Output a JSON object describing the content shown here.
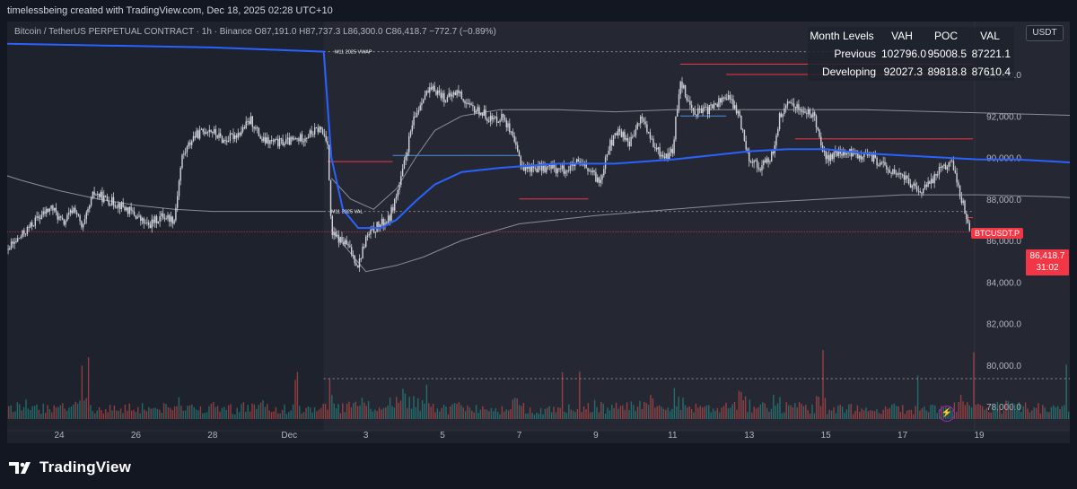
{
  "caption": "timelessbeing created with TradingView.com, Dec 18, 2025 02:28 UTC+10",
  "chart_title": "Bitcoin / TetherUS PERPETUAL CONTRACT · 1h · Binance  O87,191.0  H87,737.3  L86,300.0  C86,418.7  −772.7 (−0.89%)",
  "currency_label": "USDT",
  "brand_name": "TradingView",
  "month_levels": {
    "headers": [
      "Month Levels",
      "VAH",
      "POC",
      "VAL"
    ],
    "rows": [
      {
        "label": "Previous",
        "vah": "102796.0",
        "poc": "95008.5",
        "val": "87221.1"
      },
      {
        "label": "Developing",
        "vah": "92027.3",
        "poc": "89818.8",
        "val": "87610.4"
      }
    ]
  },
  "current_price": {
    "symbol": "BTCUSDT.P",
    "price": "86,418.7",
    "countdown": "31:02"
  },
  "annotations": {
    "vwap": "M11 2025 VWAP",
    "val": "M11 2025 VAL"
  },
  "colors": {
    "background": "#131722",
    "panel": "#1e222d",
    "up": "#d1d4dc",
    "down": "#d1d4dc",
    "vwap": "#2962ff",
    "level_line": "#f23645",
    "volume_up": "#26a69a",
    "volume_down": "#ef5350"
  },
  "chart_data": {
    "type": "candlestick",
    "y_ticks": [
      94000,
      92000,
      90000,
      88000,
      86000,
      84000,
      82000,
      80000,
      78000
    ],
    "y_tick_labels": [
      "94,000.0",
      "92,000.0",
      "90,000.0",
      "88,000.0",
      "86,000.0",
      "84,000.0",
      "82,000.0",
      "80,000.0",
      "78,000.0"
    ],
    "x_tick_labels": [
      {
        "day": 24,
        "label": "24"
      },
      {
        "day": 26,
        "label": "26"
      },
      {
        "day": 28,
        "label": "28"
      },
      {
        "day": 30,
        "label": "Dec"
      },
      {
        "day": 32,
        "label": "3"
      },
      {
        "day": 34,
        "label": "5"
      },
      {
        "day": 36,
        "label": "7"
      },
      {
        "day": 38,
        "label": "9"
      },
      {
        "day": 40,
        "label": "11"
      },
      {
        "day": 42,
        "label": "13"
      },
      {
        "day": 44,
        "label": "15"
      },
      {
        "day": 46,
        "label": "17"
      },
      {
        "day": 48,
        "label": "19"
      }
    ],
    "x_day_offset_note": "",
    "price_path": [
      {
        "d": 22.0,
        "p": 84600
      },
      {
        "d": 22.5,
        "p": 85300
      },
      {
        "d": 23.0,
        "p": 86200
      },
      {
        "d": 23.4,
        "p": 87000
      },
      {
        "d": 23.8,
        "p": 87600
      },
      {
        "d": 24.1,
        "p": 86800
      },
      {
        "d": 24.4,
        "p": 87600
      },
      {
        "d": 24.6,
        "p": 86500
      },
      {
        "d": 24.9,
        "p": 88300
      },
      {
        "d": 25.2,
        "p": 88000
      },
      {
        "d": 25.6,
        "p": 87700
      },
      {
        "d": 26.0,
        "p": 87200
      },
      {
        "d": 26.3,
        "p": 86700
      },
      {
        "d": 26.7,
        "p": 87200
      },
      {
        "d": 27.0,
        "p": 87000
      },
      {
        "d": 27.2,
        "p": 90000
      },
      {
        "d": 27.5,
        "p": 91000
      },
      {
        "d": 27.9,
        "p": 91400
      },
      {
        "d": 28.3,
        "p": 90800
      },
      {
        "d": 28.7,
        "p": 91200
      },
      {
        "d": 29.0,
        "p": 91800
      },
      {
        "d": 29.3,
        "p": 90800
      },
      {
        "d": 29.7,
        "p": 90700
      },
      {
        "d": 30.1,
        "p": 90800
      },
      {
        "d": 30.4,
        "p": 91000
      },
      {
        "d": 30.8,
        "p": 91400
      },
      {
        "d": 31.0,
        "p": 90800
      },
      {
        "d": 31.1,
        "p": 86300
      },
      {
        "d": 31.5,
        "p": 85800
      },
      {
        "d": 31.8,
        "p": 84800
      },
      {
        "d": 32.0,
        "p": 86100
      },
      {
        "d": 32.3,
        "p": 86700
      },
      {
        "d": 32.6,
        "p": 87000
      },
      {
        "d": 32.9,
        "p": 88800
      },
      {
        "d": 33.2,
        "p": 91500
      },
      {
        "d": 33.5,
        "p": 93000
      },
      {
        "d": 33.8,
        "p": 93300
      },
      {
        "d": 34.1,
        "p": 92800
      },
      {
        "d": 34.4,
        "p": 93200
      },
      {
        "d": 34.7,
        "p": 92400
      },
      {
        "d": 35.0,
        "p": 92200
      },
      {
        "d": 35.3,
        "p": 91800
      },
      {
        "d": 35.6,
        "p": 92000
      },
      {
        "d": 35.9,
        "p": 90500
      },
      {
        "d": 36.1,
        "p": 89500
      },
      {
        "d": 36.4,
        "p": 89500
      },
      {
        "d": 36.8,
        "p": 89500
      },
      {
        "d": 37.2,
        "p": 89400
      },
      {
        "d": 37.5,
        "p": 89700
      },
      {
        "d": 37.8,
        "p": 89400
      },
      {
        "d": 38.1,
        "p": 88800
      },
      {
        "d": 38.3,
        "p": 90400
      },
      {
        "d": 38.6,
        "p": 91300
      },
      {
        "d": 38.9,
        "p": 90700
      },
      {
        "d": 39.2,
        "p": 92000
      },
      {
        "d": 39.5,
        "p": 90500
      },
      {
        "d": 39.8,
        "p": 90000
      },
      {
        "d": 40.0,
        "p": 90300
      },
      {
        "d": 40.2,
        "p": 93800
      },
      {
        "d": 40.5,
        "p": 92300
      },
      {
        "d": 40.8,
        "p": 92200
      },
      {
        "d": 41.1,
        "p": 92500
      },
      {
        "d": 41.4,
        "p": 93000
      },
      {
        "d": 41.7,
        "p": 92200
      },
      {
        "d": 42.0,
        "p": 90000
      },
      {
        "d": 42.3,
        "p": 89500
      },
      {
        "d": 42.6,
        "p": 90100
      },
      {
        "d": 42.8,
        "p": 92000
      },
      {
        "d": 43.1,
        "p": 92700
      },
      {
        "d": 43.4,
        "p": 92200
      },
      {
        "d": 43.7,
        "p": 92000
      },
      {
        "d": 44.0,
        "p": 89900
      },
      {
        "d": 44.3,
        "p": 90200
      },
      {
        "d": 44.6,
        "p": 90200
      },
      {
        "d": 44.9,
        "p": 90100
      },
      {
        "d": 45.2,
        "p": 90000
      },
      {
        "d": 45.5,
        "p": 89600
      },
      {
        "d": 45.8,
        "p": 89200
      },
      {
        "d": 46.1,
        "p": 89000
      },
      {
        "d": 46.4,
        "p": 88300
      },
      {
        "d": 46.7,
        "p": 88700
      },
      {
        "d": 47.0,
        "p": 89600
      },
      {
        "d": 47.3,
        "p": 89700
      },
      {
        "d": 47.6,
        "p": 87600
      },
      {
        "d": 47.8,
        "p": 86200
      },
      {
        "d": 48.1,
        "p": 85800
      },
      {
        "d": 48.4,
        "p": 85500
      },
      {
        "d": 48.7,
        "p": 86100
      },
      {
        "d": 49.0,
        "p": 86800
      },
      {
        "d": 49.3,
        "p": 87500
      },
      {
        "d": 49.6,
        "p": 87300
      },
      {
        "d": 49.9,
        "p": 87000
      },
      {
        "d": 50.2,
        "p": 86600
      },
      {
        "d": 50.5,
        "p": 86800
      },
      {
        "d": 50.8,
        "p": 87200
      },
      {
        "d": 51.0,
        "p": 86418.7
      }
    ],
    "vwap_path": [
      {
        "d": 22.0,
        "p": 95500
      },
      {
        "d": 25.0,
        "p": 95400
      },
      {
        "d": 28.0,
        "p": 95300
      },
      {
        "d": 30.9,
        "p": 95100
      },
      {
        "d": 31.1,
        "p": 90000
      },
      {
        "d": 31.4,
        "p": 87500
      },
      {
        "d": 31.8,
        "p": 86600
      },
      {
        "d": 32.4,
        "p": 86600
      },
      {
        "d": 32.8,
        "p": 87000
      },
      {
        "d": 33.3,
        "p": 87900
      },
      {
        "d": 33.8,
        "p": 88700
      },
      {
        "d": 34.5,
        "p": 89300
      },
      {
        "d": 35.5,
        "p": 89500
      },
      {
        "d": 37.0,
        "p": 89700
      },
      {
        "d": 38.5,
        "p": 89700
      },
      {
        "d": 40.0,
        "p": 89900
      },
      {
        "d": 41.0,
        "p": 90100
      },
      {
        "d": 42.0,
        "p": 90300
      },
      {
        "d": 43.0,
        "p": 90400
      },
      {
        "d": 44.0,
        "p": 90400
      },
      {
        "d": 45.0,
        "p": 90200
      },
      {
        "d": 46.0,
        "p": 90100
      },
      {
        "d": 47.0,
        "p": 90000
      },
      {
        "d": 48.0,
        "p": 89900
      },
      {
        "d": 49.0,
        "p": 89900
      },
      {
        "d": 50.0,
        "p": 89800
      },
      {
        "d": 51.0,
        "p": 89700
      }
    ],
    "upper_band_path": [
      {
        "d": 31.1,
        "p": 89000
      },
      {
        "d": 31.6,
        "p": 88000
      },
      {
        "d": 32.2,
        "p": 87500
      },
      {
        "d": 32.8,
        "p": 88500
      },
      {
        "d": 33.3,
        "p": 90000
      },
      {
        "d": 33.8,
        "p": 91300
      },
      {
        "d": 34.5,
        "p": 92000
      },
      {
        "d": 35.5,
        "p": 92300
      },
      {
        "d": 37.0,
        "p": 92300
      },
      {
        "d": 38.5,
        "p": 92200
      },
      {
        "d": 40.0,
        "p": 92300
      },
      {
        "d": 41.5,
        "p": 92300
      },
      {
        "d": 43.0,
        "p": 92300
      },
      {
        "d": 45.0,
        "p": 92300
      },
      {
        "d": 47.0,
        "p": 92200
      },
      {
        "d": 49.0,
        "p": 92100
      },
      {
        "d": 51.0,
        "p": 92000
      }
    ],
    "lower_band_path": [
      {
        "d": 31.1,
        "p": 86500
      },
      {
        "d": 32.0,
        "p": 84500
      },
      {
        "d": 32.8,
        "p": 84800
      },
      {
        "d": 33.5,
        "p": 85200
      },
      {
        "d": 34.5,
        "p": 86000
      },
      {
        "d": 36.0,
        "p": 86800
      },
      {
        "d": 38.0,
        "p": 87200
      },
      {
        "d": 40.0,
        "p": 87500
      },
      {
        "d": 42.0,
        "p": 87800
      },
      {
        "d": 44.0,
        "p": 88000
      },
      {
        "d": 46.0,
        "p": 88200
      },
      {
        "d": 48.0,
        "p": 88200
      },
      {
        "d": 50.0,
        "p": 88100
      },
      {
        "d": 51.0,
        "p": 88000
      }
    ],
    "prev_month_band_path": [
      {
        "d": 22.0,
        "p": 89500
      },
      {
        "d": 23.0,
        "p": 88900
      },
      {
        "d": 24.0,
        "p": 88400
      },
      {
        "d": 25.0,
        "p": 88000
      },
      {
        "d": 26.0,
        "p": 87700
      },
      {
        "d": 27.0,
        "p": 87500
      },
      {
        "d": 28.0,
        "p": 87400
      },
      {
        "d": 29.0,
        "p": 87400
      },
      {
        "d": 30.0,
        "p": 87400
      },
      {
        "d": 30.9,
        "p": 87400
      }
    ],
    "horizontal_levels": [
      {
        "kind": "red",
        "p": 90900,
        "d_from": 43.2,
        "d_to": 51.0
      },
      {
        "kind": "red",
        "p": 89800,
        "d_from": 31.0,
        "d_to": 32.7
      },
      {
        "kind": "red",
        "p": 88000,
        "d_from": 36.0,
        "d_to": 37.8
      },
      {
        "kind": "red",
        "p": 94500,
        "d_from": 40.2,
        "d_to": 51.0
      },
      {
        "kind": "red",
        "p": 94000,
        "d_from": 41.4,
        "d_to": 51.0
      },
      {
        "kind": "red",
        "p": 87100,
        "d_from": 47.7,
        "d_to": 51.0
      },
      {
        "kind": "blue",
        "p": 90100,
        "d_from": 32.7,
        "d_to": 36.0
      },
      {
        "kind": "blue",
        "p": 92000,
        "d_from": 40.2,
        "d_to": 41.4
      },
      {
        "kind": "dotted",
        "p": 95100,
        "d_from": 30.9,
        "d_to": 51.0
      },
      {
        "kind": "dotted",
        "p": 87400,
        "d_from": 30.9,
        "d_to": 51.0
      },
      {
        "kind": "price",
        "p": 86418.7,
        "d_from": 22.0,
        "d_to": 51.2
      }
    ],
    "volume_max_price_units": 4500
  }
}
